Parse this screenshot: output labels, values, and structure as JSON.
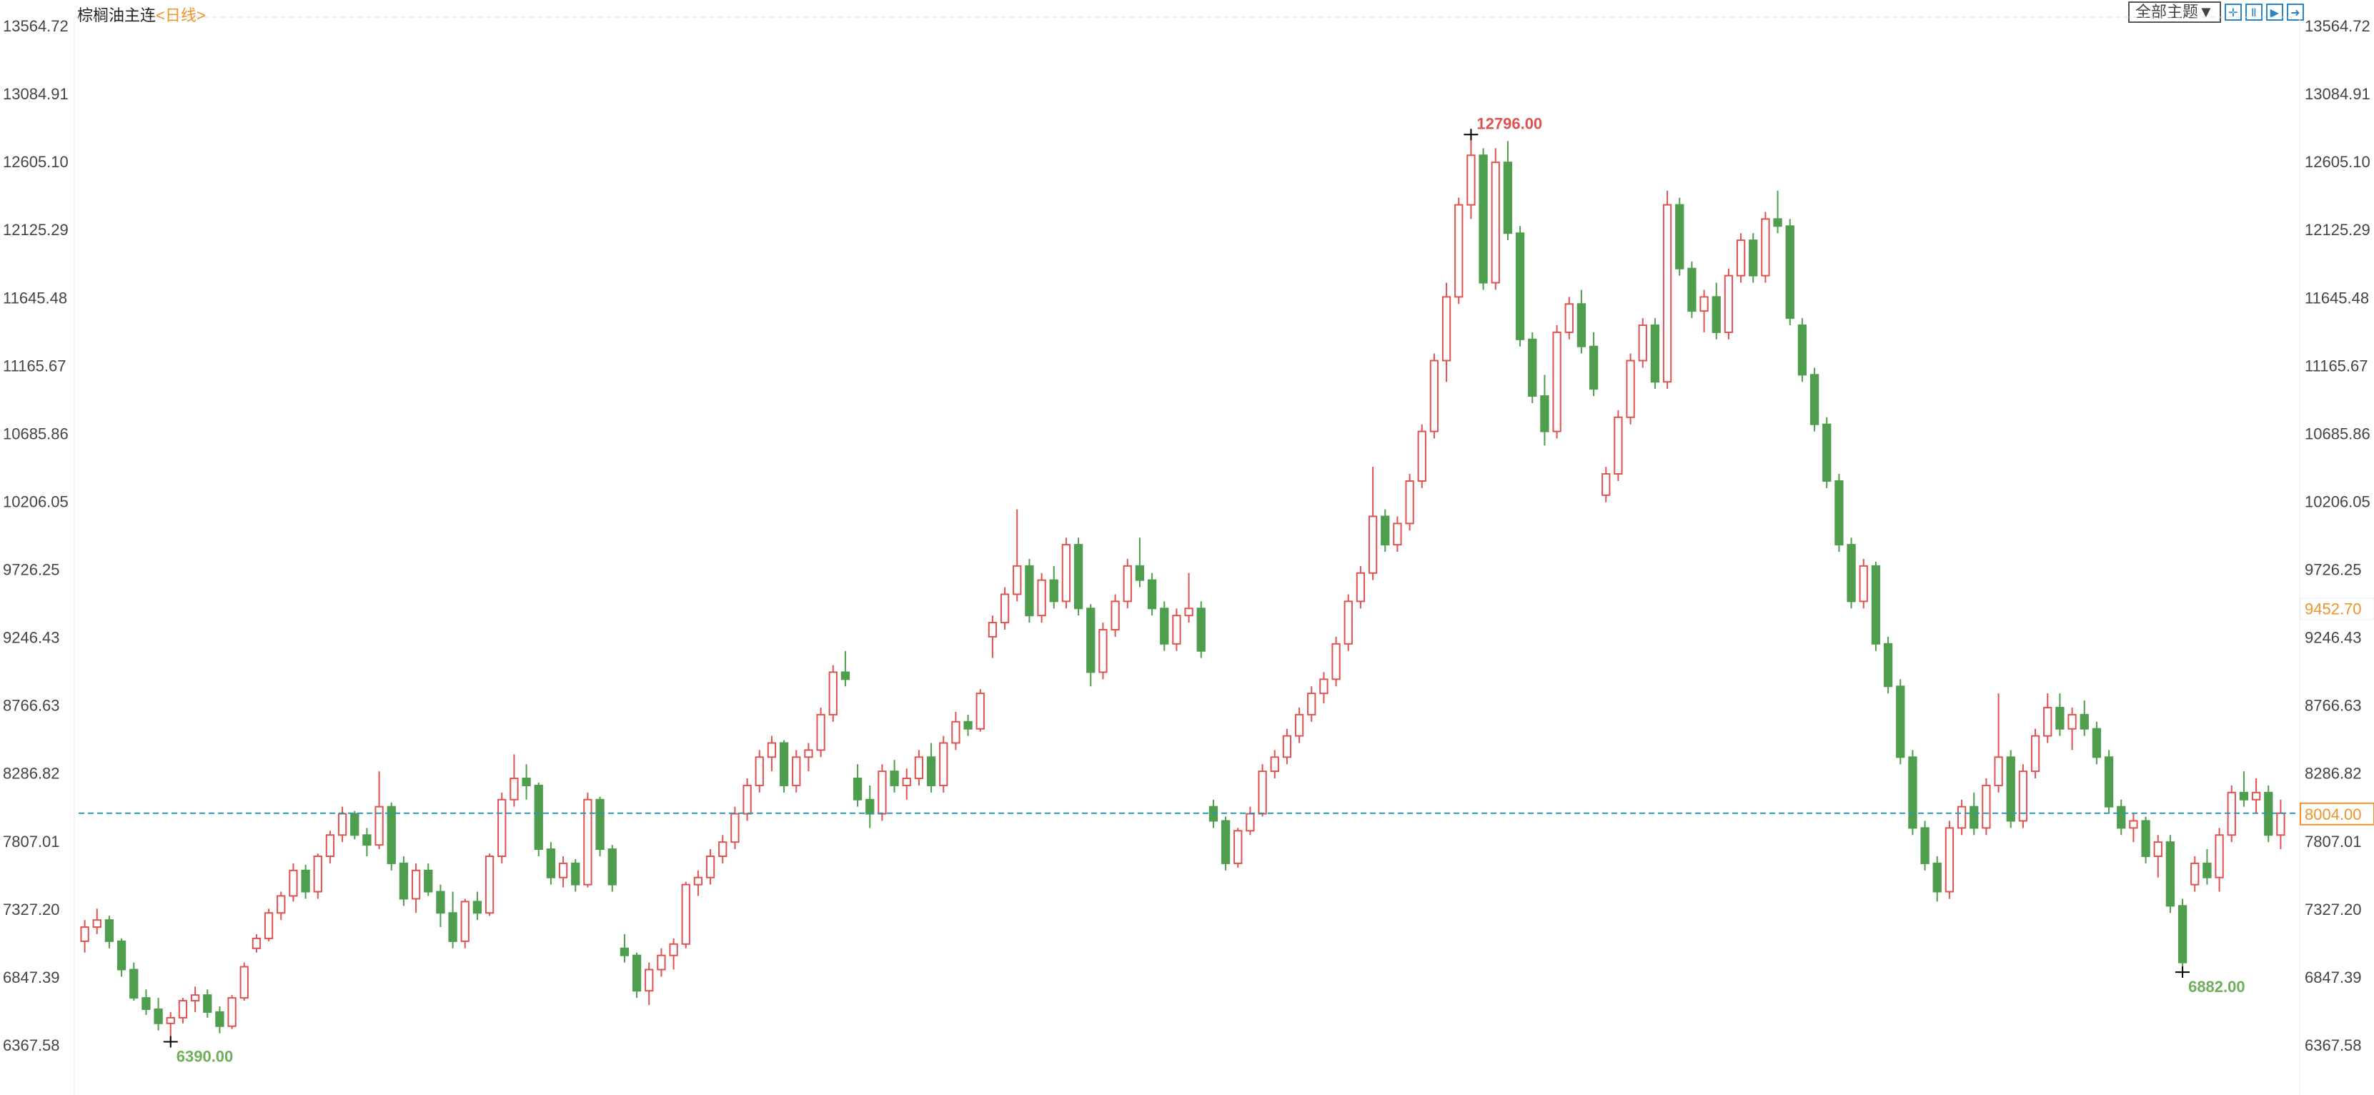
{
  "header": {
    "title": "棕榈油主连",
    "period": "<日线>"
  },
  "toolbar": {
    "theme_label": "全部主题▼",
    "icons": [
      "crosshair-icon",
      "zoom-range-icon",
      "play-icon",
      "exit-icon"
    ],
    "icon_glyphs": [
      "✛",
      "Ⅱ",
      "▶",
      "➜"
    ]
  },
  "colors": {
    "up": "#e05252",
    "down": "#4e9e4e",
    "last_line": "#2b98b0",
    "marker": "#f0932b"
  },
  "chart_data": {
    "type": "candlestick",
    "y_ticks": [
      "13564.72",
      "13084.91",
      "12605.10",
      "12125.29",
      "11645.48",
      "11165.67",
      "10685.86",
      "10206.05",
      "9726.25",
      "9246.43",
      "8766.63",
      "8286.82",
      "7807.01",
      "7327.20",
      "6847.39",
      "6367.58"
    ],
    "ylim": [
      6367.58,
      13564.72
    ],
    "last_price": "8004.00",
    "marker_price": "9452.70",
    "annotations": {
      "high": "12796.00",
      "low1": "6390.00",
      "low2": "6882.00"
    },
    "candles": [
      [
        7100,
        7250,
        7020,
        7200
      ],
      [
        7200,
        7330,
        7150,
        7250
      ],
      [
        7250,
        7280,
        7050,
        7100
      ],
      [
        7100,
        7120,
        6850,
        6900
      ],
      [
        6900,
        6950,
        6680,
        6700
      ],
      [
        6700,
        6760,
        6580,
        6620
      ],
      [
        6620,
        6700,
        6470,
        6520
      ],
      [
        6520,
        6600,
        6390,
        6560
      ],
      [
        6560,
        6700,
        6520,
        6680
      ],
      [
        6680,
        6780,
        6600,
        6720
      ],
      [
        6720,
        6760,
        6560,
        6600
      ],
      [
        6600,
        6640,
        6450,
        6500
      ],
      [
        6500,
        6720,
        6480,
        6700
      ],
      [
        6700,
        6950,
        6680,
        6920
      ],
      [
        7050,
        7150,
        7020,
        7120
      ],
      [
        7120,
        7330,
        7100,
        7300
      ],
      [
        7300,
        7450,
        7250,
        7420
      ],
      [
        7420,
        7650,
        7380,
        7600
      ],
      [
        7600,
        7640,
        7400,
        7450
      ],
      [
        7450,
        7720,
        7400,
        7700
      ],
      [
        7700,
        7880,
        7650,
        7850
      ],
      [
        7850,
        8050,
        7800,
        8000
      ],
      [
        8000,
        8020,
        7820,
        7850
      ],
      [
        7850,
        7900,
        7700,
        7780
      ],
      [
        7780,
        8300,
        7750,
        8050
      ],
      [
        8050,
        8080,
        7600,
        7650
      ],
      [
        7650,
        7700,
        7350,
        7400
      ],
      [
        7400,
        7650,
        7300,
        7600
      ],
      [
        7600,
        7650,
        7420,
        7450
      ],
      [
        7450,
        7500,
        7200,
        7300
      ],
      [
        7300,
        7450,
        7050,
        7100
      ],
      [
        7100,
        7400,
        7050,
        7380
      ],
      [
        7380,
        7450,
        7250,
        7300
      ],
      [
        7300,
        7720,
        7280,
        7700
      ],
      [
        7700,
        8150,
        7650,
        8100
      ],
      [
        8100,
        8420,
        8050,
        8250
      ],
      [
        8250,
        8350,
        8100,
        8200
      ],
      [
        8200,
        8220,
        7700,
        7750
      ],
      [
        7750,
        7800,
        7500,
        7550
      ],
      [
        7550,
        7700,
        7480,
        7650
      ],
      [
        7650,
        7680,
        7450,
        7500
      ],
      [
        7500,
        8150,
        7480,
        8100
      ],
      [
        8100,
        8120,
        7700,
        7750
      ],
      [
        7750,
        7780,
        7450,
        7500
      ],
      [
        7050,
        7150,
        6950,
        7000
      ],
      [
        7000,
        7020,
        6700,
        6750
      ],
      [
        6750,
        6950,
        6650,
        6900
      ],
      [
        6900,
        7050,
        6850,
        7000
      ],
      [
        7000,
        7120,
        6900,
        7080
      ],
      [
        7080,
        7520,
        7050,
        7500
      ],
      [
        7500,
        7600,
        7420,
        7550
      ],
      [
        7550,
        7750,
        7500,
        7700
      ],
      [
        7700,
        7850,
        7650,
        7800
      ],
      [
        7800,
        8050,
        7750,
        8000
      ],
      [
        8000,
        8250,
        7950,
        8200
      ],
      [
        8200,
        8450,
        8150,
        8400
      ],
      [
        8400,
        8550,
        8300,
        8500
      ],
      [
        8500,
        8520,
        8150,
        8200
      ],
      [
        8200,
        8450,
        8150,
        8400
      ],
      [
        8400,
        8500,
        8300,
        8450
      ],
      [
        8450,
        8750,
        8400,
        8700
      ],
      [
        8700,
        9050,
        8650,
        9000
      ],
      [
        9000,
        9150,
        8900,
        8950
      ],
      [
        8250,
        8350,
        8050,
        8100
      ],
      [
        8100,
        8200,
        7900,
        8000
      ],
      [
        8000,
        8350,
        7950,
        8300
      ],
      [
        8300,
        8380,
        8150,
        8200
      ],
      [
        8200,
        8320,
        8100,
        8250
      ],
      [
        8250,
        8450,
        8200,
        8400
      ],
      [
        8400,
        8500,
        8150,
        8200
      ],
      [
        8200,
        8550,
        8150,
        8500
      ],
      [
        8500,
        8720,
        8450,
        8650
      ],
      [
        8650,
        8700,
        8550,
        8600
      ],
      [
        8600,
        8880,
        8580,
        8850
      ],
      [
        9250,
        9400,
        9100,
        9350
      ],
      [
        9350,
        9600,
        9300,
        9550
      ],
      [
        9550,
        10150,
        9500,
        9750
      ],
      [
        9750,
        9800,
        9350,
        9400
      ],
      [
        9400,
        9700,
        9350,
        9650
      ],
      [
        9650,
        9750,
        9450,
        9500
      ],
      [
        9500,
        9950,
        9450,
        9900
      ],
      [
        9900,
        9950,
        9400,
        9450
      ],
      [
        9450,
        9480,
        8900,
        9000
      ],
      [
        9000,
        9350,
        8950,
        9300
      ],
      [
        9300,
        9550,
        9250,
        9500
      ],
      [
        9500,
        9800,
        9450,
        9750
      ],
      [
        9750,
        9950,
        9600,
        9650
      ],
      [
        9650,
        9700,
        9400,
        9450
      ],
      [
        9450,
        9500,
        9150,
        9200
      ],
      [
        9200,
        9450,
        9150,
        9400
      ],
      [
        9400,
        9700,
        9350,
        9450
      ],
      [
        9450,
        9500,
        9100,
        9150
      ],
      [
        8050,
        8100,
        7900,
        7950
      ],
      [
        7950,
        7980,
        7600,
        7650
      ],
      [
        7650,
        7900,
        7620,
        7880
      ],
      [
        7880,
        8050,
        7850,
        8000
      ],
      [
        8000,
        8350,
        7980,
        8300
      ],
      [
        8300,
        8450,
        8250,
        8400
      ],
      [
        8400,
        8600,
        8350,
        8550
      ],
      [
        8550,
        8750,
        8500,
        8700
      ],
      [
        8700,
        8900,
        8650,
        8850
      ],
      [
        8850,
        9000,
        8780,
        8950
      ],
      [
        8950,
        9250,
        8900,
        9200
      ],
      [
        9200,
        9550,
        9150,
        9500
      ],
      [
        9500,
        9750,
        9450,
        9700
      ],
      [
        9700,
        10450,
        9650,
        10100
      ],
      [
        10100,
        10150,
        9850,
        9900
      ],
      [
        9900,
        10100,
        9850,
        10050
      ],
      [
        10050,
        10400,
        10000,
        10350
      ],
      [
        10350,
        10750,
        10300,
        10700
      ],
      [
        10700,
        11250,
        10650,
        11200
      ],
      [
        11200,
        11750,
        11050,
        11650
      ],
      [
        11650,
        12350,
        11600,
        12300
      ],
      [
        12300,
        12796,
        12200,
        12650
      ],
      [
        12650,
        12700,
        11700,
        11750
      ],
      [
        11750,
        12700,
        11700,
        12600
      ],
      [
        12600,
        12750,
        12050,
        12100
      ],
      [
        12100,
        12150,
        11300,
        11350
      ],
      [
        11350,
        11400,
        10900,
        10950
      ],
      [
        10950,
        11100,
        10600,
        10700
      ],
      [
        10700,
        11450,
        10650,
        11400
      ],
      [
        11400,
        11650,
        11350,
        11600
      ],
      [
        11600,
        11700,
        11250,
        11300
      ],
      [
        11300,
        11400,
        10950,
        11000
      ],
      [
        10250,
        10450,
        10200,
        10400
      ],
      [
        10400,
        10850,
        10350,
        10800
      ],
      [
        10800,
        11250,
        10750,
        11200
      ],
      [
        11200,
        11500,
        11150,
        11450
      ],
      [
        11450,
        11500,
        11000,
        11050
      ],
      [
        11050,
        12400,
        11000,
        12300
      ],
      [
        12300,
        12350,
        11800,
        11850
      ],
      [
        11850,
        11900,
        11500,
        11550
      ],
      [
        11550,
        11700,
        11400,
        11650
      ],
      [
        11650,
        11750,
        11350,
        11400
      ],
      [
        11400,
        11850,
        11350,
        11800
      ],
      [
        11800,
        12100,
        11750,
        12050
      ],
      [
        12050,
        12100,
        11750,
        11800
      ],
      [
        11800,
        12250,
        11750,
        12200
      ],
      [
        12200,
        12400,
        12100,
        12150
      ],
      [
        12150,
        12200,
        11450,
        11500
      ],
      [
        11450,
        11500,
        11050,
        11100
      ],
      [
        11100,
        11150,
        10700,
        10750
      ],
      [
        10750,
        10800,
        10300,
        10350
      ],
      [
        10350,
        10400,
        9850,
        9900
      ],
      [
        9900,
        9950,
        9450,
        9500
      ],
      [
        9500,
        9800,
        9450,
        9750
      ],
      [
        9750,
        9780,
        9150,
        9200
      ],
      [
        9200,
        9250,
        8850,
        8900
      ],
      [
        8900,
        8950,
        8350,
        8400
      ],
      [
        8400,
        8450,
        7850,
        7900
      ],
      [
        7900,
        7950,
        7600,
        7650
      ],
      [
        7650,
        7700,
        7380,
        7450
      ],
      [
        7450,
        7950,
        7400,
        7900
      ],
      [
        7900,
        8100,
        7850,
        8050
      ],
      [
        8050,
        8150,
        7850,
        7900
      ],
      [
        7900,
        8250,
        7850,
        8200
      ],
      [
        8200,
        8850,
        8150,
        8400
      ],
      [
        8400,
        8450,
        7900,
        7950
      ],
      [
        7950,
        8350,
        7900,
        8300
      ],
      [
        8300,
        8600,
        8250,
        8550
      ],
      [
        8550,
        8850,
        8500,
        8750
      ],
      [
        8750,
        8850,
        8550,
        8600
      ],
      [
        8600,
        8750,
        8450,
        8700
      ],
      [
        8700,
        8800,
        8550,
        8600
      ],
      [
        8600,
        8650,
        8350,
        8400
      ],
      [
        8400,
        8450,
        8000,
        8050
      ],
      [
        8050,
        8100,
        7850,
        7900
      ],
      [
        7900,
        8000,
        7800,
        7950
      ],
      [
        7950,
        7980,
        7650,
        7700
      ],
      [
        7700,
        7850,
        7550,
        7800
      ],
      [
        7800,
        7850,
        7300,
        7350
      ],
      [
        7350,
        7400,
        6882,
        6950
      ],
      [
        7500,
        7700,
        7450,
        7650
      ],
      [
        7650,
        7750,
        7500,
        7550
      ],
      [
        7550,
        7900,
        7450,
        7850
      ],
      [
        7850,
        8200,
        7800,
        8150
      ],
      [
        8150,
        8300,
        8050,
        8100
      ],
      [
        8100,
        8250,
        8000,
        8150
      ],
      [
        8150,
        8200,
        7800,
        7850
      ],
      [
        7850,
        8100,
        7750,
        8004
      ]
    ]
  }
}
